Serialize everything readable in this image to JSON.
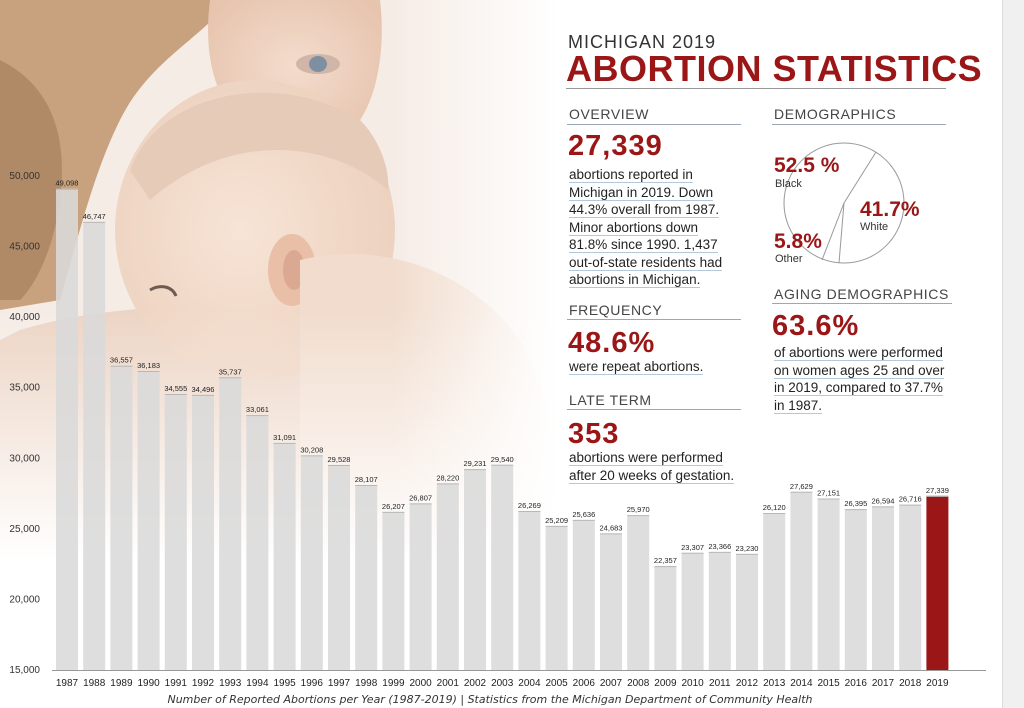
{
  "header": {
    "kicker": "MICHIGAN 2019",
    "title": "ABORTION STATISTICS"
  },
  "overview": {
    "heading": "OVERVIEW",
    "number": "27,339",
    "text_lines": [
      "abortions reported in",
      "Michigan in 2019. Down",
      "44.3% overall from 1987.",
      "Minor abortions down",
      "81.8% since 1990. 1,437",
      "out-of-state residents had",
      "abortions in Michigan."
    ]
  },
  "frequency": {
    "heading": "FREQUENCY",
    "number": "48.6%",
    "text_lines": [
      "were repeat abortions."
    ]
  },
  "late_term": {
    "heading": "LATE TERM",
    "number": "353",
    "text_lines": [
      "abortions were performed",
      "after 20 weeks of gestation."
    ]
  },
  "demographics": {
    "heading": "DEMOGRAPHICS",
    "segments": [
      {
        "value": "52.5 %",
        "label": "Black",
        "share": 52.5
      },
      {
        "value": "41.7%",
        "label": "White",
        "share": 41.7
      },
      {
        "value": "5.8%",
        "label": "Other",
        "share": 5.8
      }
    ]
  },
  "aging": {
    "heading": "AGING DEMOGRAPHICS",
    "number": "63.6%",
    "text_lines": [
      "of abortions were performed",
      "on women ages 25 and over",
      "in 2019, compared to 37.7%",
      "in 1987."
    ]
  },
  "caption": "Number of Reported Abortions per Year (1987-2019)  |  Statistics from the Michigan Department of Community Health",
  "chart_data": {
    "type": "bar",
    "title": "",
    "xlabel": "",
    "ylabel": "",
    "ylim": [
      15000,
      51000
    ],
    "y_ticks": [
      15000,
      20000,
      25000,
      30000,
      35000,
      40000,
      45000,
      50000
    ],
    "y_tick_labels": [
      "15,000",
      "20,000",
      "25,000",
      "30,000",
      "35,000",
      "40,000",
      "45,000",
      "50,000"
    ],
    "categories": [
      "1987",
      "1988",
      "1989",
      "1990",
      "1991",
      "1992",
      "1993",
      "1994",
      "1995",
      "1996",
      "1997",
      "1998",
      "1999",
      "2000",
      "2001",
      "2002",
      "2003",
      "2004",
      "2005",
      "2006",
      "2007",
      "2008",
      "2009",
      "2010",
      "2011",
      "2012",
      "2013",
      "2014",
      "2015",
      "2016",
      "2017",
      "2018",
      "2019"
    ],
    "values": [
      49098,
      46747,
      36557,
      36183,
      34555,
      34496,
      35737,
      33061,
      31091,
      30208,
      29528,
      28107,
      26207,
      26807,
      28220,
      29231,
      29540,
      26269,
      25209,
      25636,
      24683,
      25970,
      22357,
      23307,
      23366,
      23230,
      26120,
      27629,
      27151,
      26395,
      26594,
      26716,
      27339
    ],
    "value_labels": [
      "49,098",
      "46,747",
      "36,557",
      "36,183",
      "34,555",
      "34,496",
      "35,737",
      "33,061",
      "31,091",
      "30,208",
      "29,528",
      "28,107",
      "26,207",
      "26,807",
      "28,220",
      "29,231",
      "29,540",
      "26,269",
      "25,209",
      "25,636",
      "24,683",
      "25,970",
      "22,357",
      "23,307",
      "23,366",
      "23,230",
      "26,120",
      "27,629",
      "27,151",
      "26,395",
      "26,594",
      "26,716",
      "27,339"
    ],
    "highlight_index": 32,
    "colors": {
      "bar": "#d9d9d9",
      "highlight": "#9b1616",
      "gridline": "#b8b8b8"
    },
    "grid": false
  }
}
